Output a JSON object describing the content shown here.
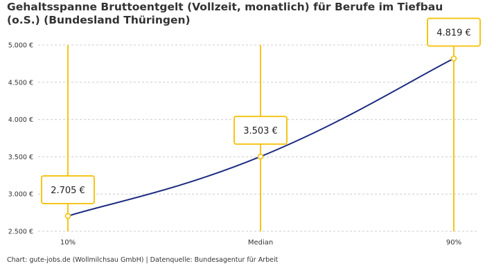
{
  "chart_data": {
    "type": "line",
    "title": "Gehaltsspanne Bruttoentgelt (Vollzeit, monatlich) für Berufe im Tiefbau (o.S.) (Bundesland Thüringen)",
    "categories": [
      "10%",
      "Median",
      "90%"
    ],
    "series": [
      {
        "values": [
          2705,
          3503,
          4819
        ],
        "labels": [
          "2.705 €",
          "3.503 €",
          "4.819 €"
        ]
      }
    ],
    "yticks": [
      {
        "value": 2500,
        "label": "2.500 €"
      },
      {
        "value": 3000,
        "label": "3.000 €"
      },
      {
        "value": 3500,
        "label": "3.500 €"
      },
      {
        "value": 4000,
        "label": "4.000 €"
      },
      {
        "value": 4500,
        "label": "4.500 €"
      },
      {
        "value": 5000,
        "label": "5.000 €"
      }
    ],
    "ylim": [
      2500,
      5000
    ],
    "grid": true,
    "colors": {
      "line": "#1c2b80",
      "accent": "#f5c518",
      "grid": "#cccccc"
    }
  },
  "credit": "Chart: gute-jobs.de (Wollmilchsau GmbH) | Datenquelle: Bundesagentur für Arbeit"
}
